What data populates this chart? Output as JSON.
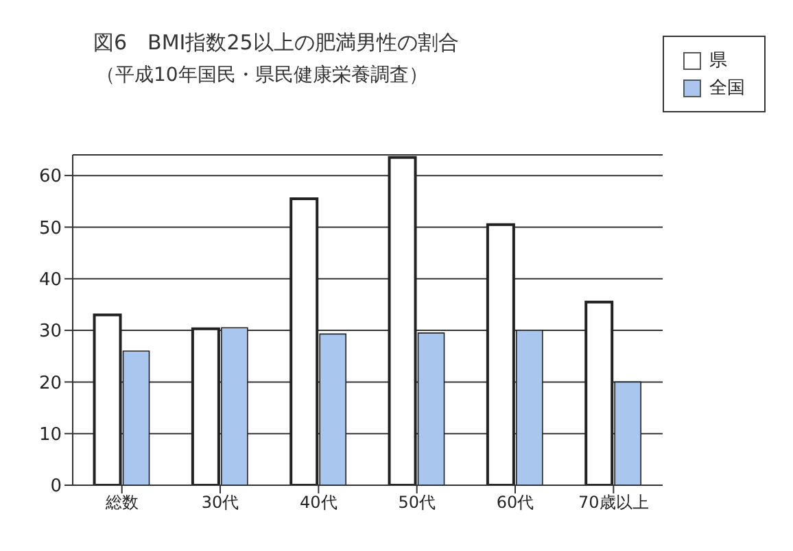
{
  "chart_data": {
    "type": "bar",
    "title": "図6　BMI指数25以上の肥満男性の割合",
    "subtitle": "（平成10年国民・県民健康栄養調査）",
    "categories": [
      "総数",
      "30代",
      "40代",
      "50代",
      "60代",
      "70歳以上"
    ],
    "series": [
      {
        "name": "県",
        "color": "#ffffff",
        "values": [
          33,
          30.3,
          55.5,
          63.5,
          50.5,
          35.5
        ]
      },
      {
        "name": "全国",
        "color": "#a9c6ef",
        "values": [
          26,
          30.5,
          29.3,
          29.5,
          30,
          20
        ]
      }
    ],
    "ylim": [
      0,
      64
    ],
    "yticks": [
      0,
      10,
      20,
      30,
      40,
      50,
      60
    ],
    "grid": "y",
    "legend": "top right"
  }
}
